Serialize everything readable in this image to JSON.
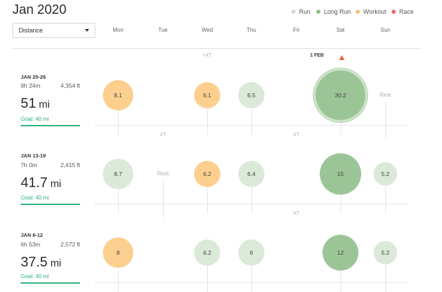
{
  "header": {
    "title": "Jan 2020",
    "metric_select": {
      "value": "Distance"
    },
    "legend": [
      {
        "label": "Run",
        "color": "#d5d5d5"
      },
      {
        "label": "Long Run",
        "color": "#8fbf8a"
      },
      {
        "label": "Workout",
        "color": "#f8c27b"
      },
      {
        "label": "Race",
        "color": "#e86a64"
      }
    ],
    "days": [
      "Mon",
      "Tue",
      "Wed",
      "Thu",
      "Fri",
      "Sat",
      "Sun"
    ],
    "xt_label": "+XT",
    "date_marker": "1 FEB"
  },
  "colors": {
    "run": "#dbe9d9",
    "long_run": "#9cc597",
    "workout": "#fccf8f",
    "goal": "#2fb37a",
    "today_marker": "#e8673c"
  },
  "weeks": [
    {
      "range": "JAN 20-26",
      "time": "9h 24m",
      "elevation": "4,354 ft",
      "distance": "51",
      "unit": "mi",
      "goal": "Goal: 40 mi",
      "days": [
        {
          "day": "Mon",
          "label": "8.1",
          "value": 8.1,
          "type": "workout"
        },
        {
          "day": "Tue",
          "label": "",
          "value": 0,
          "type": "none"
        },
        {
          "day": "Wed",
          "label": "6.1",
          "value": 6.1,
          "type": "workout"
        },
        {
          "day": "Thu",
          "label": "6.5",
          "value": 6.5,
          "type": "run"
        },
        {
          "day": "Fri",
          "label": "",
          "value": 0,
          "type": "none"
        },
        {
          "day": "Sat",
          "label": "30.2",
          "value": 30.2,
          "type": "long_run",
          "highlight": true
        },
        {
          "day": "Sun",
          "label": "Rest",
          "value": 0,
          "type": "rest"
        }
      ],
      "xt_below": [
        "XT",
        "XT"
      ]
    },
    {
      "range": "JAN 13-19",
      "time": "7h 0m",
      "elevation": "2,415 ft",
      "distance": "41.7",
      "unit": "mi",
      "goal": "Goal: 40 mi",
      "days": [
        {
          "day": "Mon",
          "label": "8.7",
          "value": 8.7,
          "type": "run"
        },
        {
          "day": "Tue",
          "label": "Rest",
          "value": 0,
          "type": "rest"
        },
        {
          "day": "Wed",
          "label": "6.2",
          "value": 6.2,
          "type": "workout"
        },
        {
          "day": "Thu",
          "label": "6.4",
          "value": 6.4,
          "type": "run"
        },
        {
          "day": "Fri",
          "label": "",
          "value": 0,
          "type": "none"
        },
        {
          "day": "Sat",
          "label": "15",
          "value": 15,
          "type": "long_run"
        },
        {
          "day": "Sun",
          "label": "5.2",
          "value": 5.2,
          "type": "run"
        }
      ],
      "xt_below": [
        "XT"
      ]
    },
    {
      "range": "JAN 6-12",
      "time": "6h 53m",
      "elevation": "2,572 ft",
      "distance": "37.5",
      "unit": "mi",
      "goal": "Goal: 40 mi",
      "days": [
        {
          "day": "Mon",
          "label": "8",
          "value": 8,
          "type": "workout"
        },
        {
          "day": "Tue",
          "label": "",
          "value": 0,
          "type": "none"
        },
        {
          "day": "Wed",
          "label": "6.2",
          "value": 6.2,
          "type": "run"
        },
        {
          "day": "Thu",
          "label": "6",
          "value": 6,
          "type": "run"
        },
        {
          "day": "Fri",
          "label": "",
          "value": 0,
          "type": "none"
        },
        {
          "day": "Sat",
          "label": "12",
          "value": 12,
          "type": "long_run"
        },
        {
          "day": "Sun",
          "label": "5.2",
          "value": 5.2,
          "type": "run"
        }
      ]
    }
  ]
}
